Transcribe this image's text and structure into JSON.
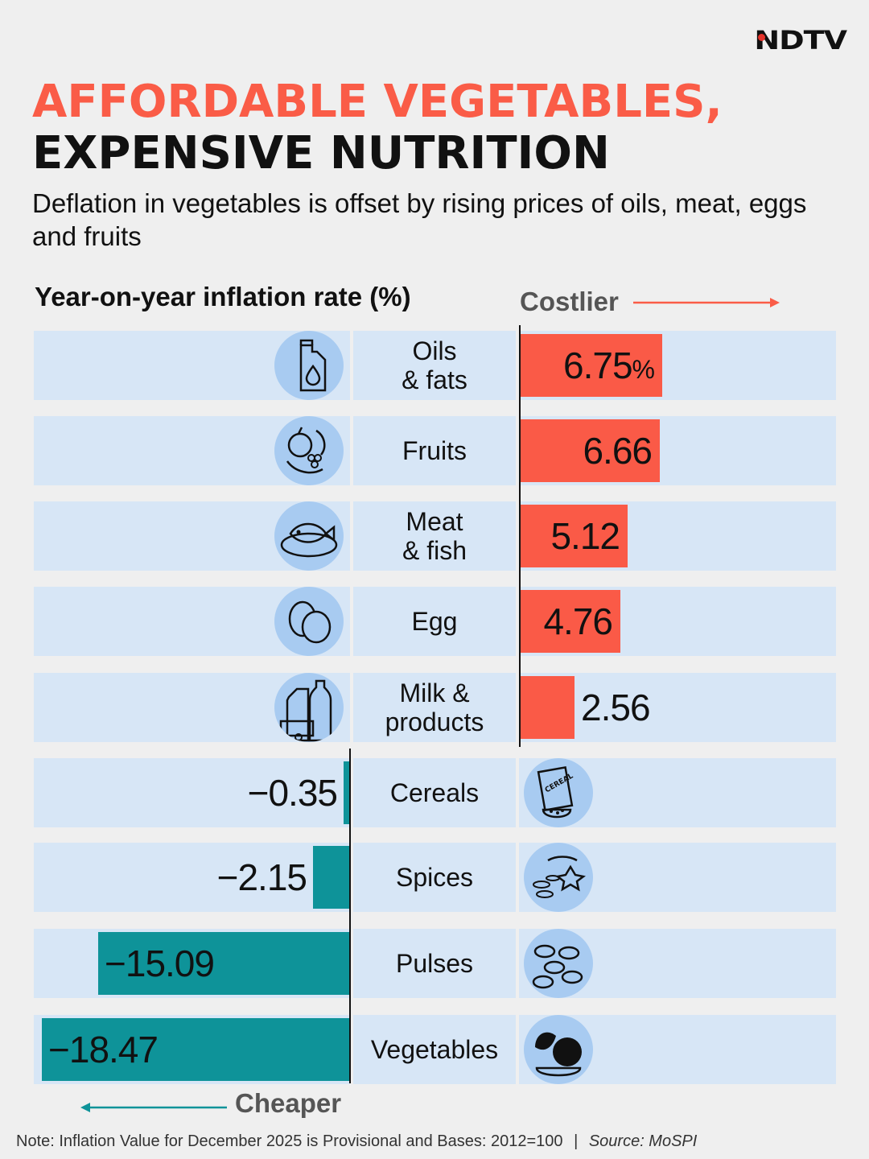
{
  "brand": {
    "logo": "NDTV"
  },
  "header": {
    "title_line1": "AFFORDABLE VEGETABLES,",
    "title_line2": "EXPENSIVE NUTRITION",
    "subtitle": "Deflation in vegetables is offset by rising prices of oils, meat, eggs and fruits"
  },
  "chart_data": {
    "type": "bar",
    "orientation": "horizontal-diverging",
    "title": "Year-on-year inflation rate (%)",
    "positive_label": "Costlier",
    "negative_label": "Cheaper",
    "unit": "%",
    "categories": [
      "Oils & fats",
      "Fruits",
      "Meat & fish",
      "Egg",
      "Milk & products",
      "Cereals",
      "Spices",
      "Pulses",
      "Vegetables"
    ],
    "values": [
      6.75,
      6.66,
      5.12,
      4.76,
      2.56,
      -0.35,
      -2.15,
      -15.09,
      -18.47
    ],
    "value_labels": [
      "6.75",
      "6.66",
      "5.12",
      "4.76",
      "2.56",
      "−0.35",
      "−2.15",
      "−15.09",
      "−18.47"
    ],
    "first_label_suffix": "%",
    "label_lines": [
      [
        "Oils",
        "& fats"
      ],
      [
        "Fruits"
      ],
      [
        "Meat",
        "& fish"
      ],
      [
        "Egg"
      ],
      [
        "Milk &",
        "products"
      ],
      [
        "Cereals"
      ],
      [
        "Spices"
      ],
      [
        "Pulses"
      ],
      [
        "Vegetables"
      ]
    ],
    "icons": [
      "oil-can-icon",
      "fruits-icon",
      "fish-plate-icon",
      "eggs-icon",
      "milk-products-icon",
      "cereal-box-icon",
      "spices-icon",
      "beans-icon",
      "vegetables-icon"
    ],
    "colors": {
      "positive": "#fa5a47",
      "negative": "#0e9399",
      "row_bg": "#d7e6f6",
      "icon_bg": "#a8cbf1"
    }
  },
  "footer": {
    "note": "Note: Inflation Value for December 2025 is Provisional and Bases: 2012=100",
    "separator": "|",
    "source": "Source: MoSPI"
  }
}
